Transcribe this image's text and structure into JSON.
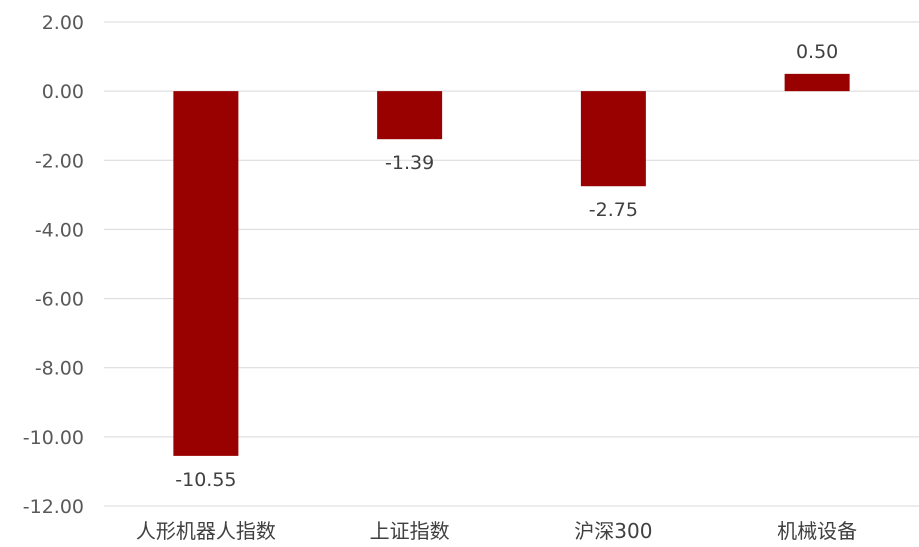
{
  "chart_data": {
    "type": "bar",
    "categories": [
      "人形机器人指数",
      "上证指数",
      "沪深300",
      "机械设备"
    ],
    "values": [
      -10.55,
      -1.39,
      -2.75,
      0.5
    ],
    "data_labels": [
      "-10.55",
      "-1.39",
      "-2.75",
      "0.50"
    ],
    "ylim": [
      -12,
      2
    ],
    "yticks": [
      2,
      0,
      -2,
      -4,
      -6,
      -8,
      -10,
      -12
    ],
    "ytick_labels": [
      "2.00",
      "0.00",
      "-2.00",
      "-4.00",
      "-6.00",
      "-8.00",
      "-10.00",
      "-12.00"
    ],
    "title": "",
    "xlabel": "",
    "ylabel": "",
    "grid": true,
    "legend": "none",
    "bar_color": "#990000"
  }
}
